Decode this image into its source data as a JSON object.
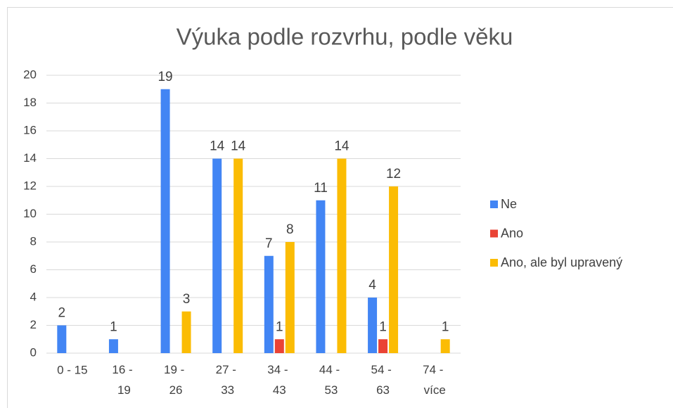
{
  "chart_data": {
    "type": "bar",
    "title": "Výuka podle rozvrhu, podle věku",
    "categories": [
      "0 - 15",
      "16 - 19",
      "19 - 26",
      "27 - 33",
      "34 - 43",
      "44 - 53",
      "54 - 63",
      "74 - více"
    ],
    "series": [
      {
        "name": "Ne",
        "color": "#4285f4",
        "values": [
          2,
          1,
          19,
          14,
          7,
          11,
          4,
          null
        ]
      },
      {
        "name": "Ano",
        "color": "#ea4335",
        "values": [
          null,
          null,
          null,
          null,
          1,
          null,
          1,
          null
        ]
      },
      {
        "name": "Ano, ale byl upravený",
        "color": "#fbbc04",
        "values": [
          null,
          null,
          3,
          14,
          8,
          14,
          12,
          1
        ]
      }
    ],
    "ylim": [
      0,
      20
    ],
    "yticks": [
      0,
      2,
      4,
      6,
      8,
      10,
      12,
      14,
      16,
      18,
      20
    ],
    "grid": true,
    "legend": "right"
  }
}
